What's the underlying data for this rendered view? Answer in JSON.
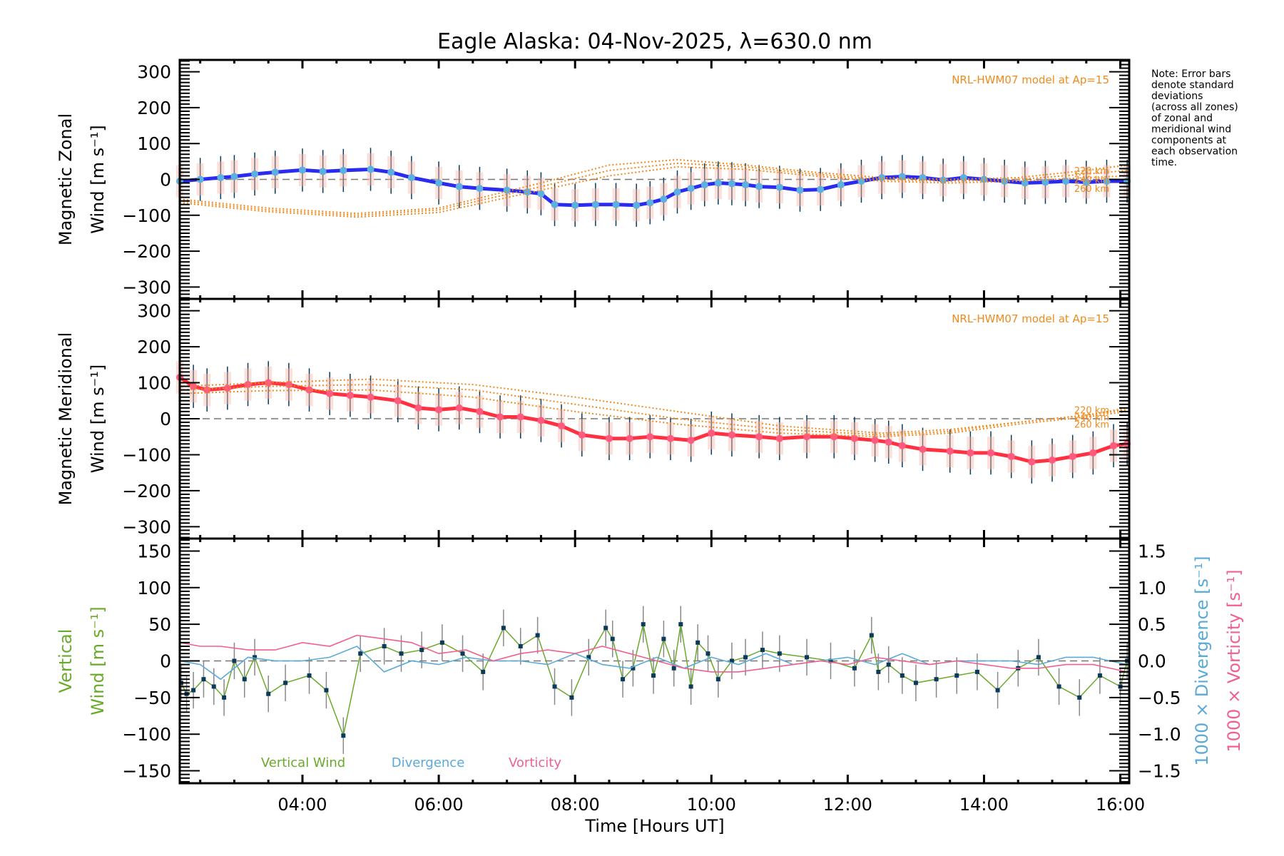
{
  "chart_data": [
    {
      "type": "line",
      "panel": "zonal",
      "title": "Eagle Alaska: 04-Nov-2025, λ=630.0 nm",
      "ylabel_line1": "Magnetic Zonal",
      "ylabel_line2": "Wind [m s⁻¹]",
      "ylim": [
        -333,
        333
      ],
      "yticks": [
        300,
        200,
        100,
        0,
        -100,
        -200,
        -300
      ],
      "ytick_labels": [
        "300",
        "200",
        "100",
        "0",
        "−100",
        "−200",
        "−300"
      ],
      "model_label": "NRL-HWM07 model at Ap=15",
      "model_altitudes": [
        "220 km",
        "240 km",
        "260 km"
      ],
      "series": [
        {
          "name": "Zonal wind (mean)",
          "color": "#2a2af0",
          "x": [
            2.2,
            2.5,
            2.8,
            3.0,
            3.3,
            3.6,
            4.0,
            4.3,
            4.6,
            5.0,
            5.3,
            5.6,
            6.0,
            6.3,
            6.6,
            7.0,
            7.3,
            7.5,
            7.7,
            8.0,
            8.3,
            8.6,
            8.9,
            9.1,
            9.3,
            9.5,
            9.7,
            9.9,
            10.1,
            10.3,
            10.5,
            10.7,
            11.0,
            11.3,
            11.6,
            11.9,
            12.2,
            12.5,
            12.8,
            13.1,
            13.4,
            13.7,
            14.0,
            14.3,
            14.6,
            14.9,
            15.2,
            15.5,
            15.8,
            16.1
          ],
          "values": [
            -5,
            0,
            5,
            8,
            15,
            20,
            26,
            22,
            25,
            28,
            20,
            5,
            -10,
            -20,
            -25,
            -30,
            -35,
            -40,
            -70,
            -72,
            -70,
            -70,
            -72,
            -65,
            -55,
            -35,
            -25,
            -15,
            -10,
            -12,
            -15,
            -20,
            -22,
            -30,
            -28,
            -15,
            -5,
            5,
            8,
            5,
            -2,
            5,
            0,
            -5,
            -10,
            -8,
            -5,
            -8,
            -5,
            -5
          ]
        },
        {
          "name": "HWM07 220 km",
          "color": "#f08a1c",
          "x": [
            2.2,
            3.5,
            4.8,
            6.0,
            7.5,
            8.5,
            9.5,
            10.5,
            11.5,
            12.5,
            13.5,
            14.5,
            15.5,
            16.1
          ],
          "values": [
            -55,
            -80,
            -95,
            -80,
            -10,
            40,
            55,
            40,
            20,
            5,
            0,
            5,
            25,
            40
          ]
        },
        {
          "name": "HWM07 240 km",
          "color": "#f08a1c",
          "x": [
            2.2,
            3.5,
            4.8,
            6.0,
            7.5,
            8.5,
            9.5,
            10.5,
            11.5,
            12.5,
            13.5,
            14.5,
            15.5,
            16.1
          ],
          "values": [
            -60,
            -85,
            -100,
            -85,
            -20,
            25,
            45,
            35,
            15,
            0,
            -5,
            0,
            15,
            25
          ]
        },
        {
          "name": "HWM07 260 km",
          "color": "#f08a1c",
          "x": [
            2.2,
            3.5,
            4.8,
            6.0,
            7.5,
            8.5,
            9.5,
            10.5,
            11.5,
            12.5,
            13.5,
            14.5,
            15.5,
            16.1
          ],
          "values": [
            -65,
            -90,
            -105,
            -92,
            -30,
            10,
            35,
            28,
            10,
            -5,
            -10,
            -5,
            5,
            10
          ]
        }
      ]
    },
    {
      "type": "line",
      "panel": "meridional",
      "ylabel_line1": "Magnetic Meridional",
      "ylabel_line2": "Wind [m s⁻¹]",
      "ylim": [
        -333,
        333
      ],
      "yticks": [
        300,
        200,
        100,
        0,
        -100,
        -200,
        -300
      ],
      "ytick_labels": [
        "300",
        "200",
        "100",
        "0",
        "−100",
        "−200",
        "−300"
      ],
      "model_label": "NRL-HWM07 model at Ap=15",
      "model_altitudes": [
        "220 km",
        "240 km",
        "260 km"
      ],
      "series": [
        {
          "name": "Meridional wind (mean)",
          "color": "#ff3040",
          "x": [
            2.2,
            2.4,
            2.6,
            2.9,
            3.2,
            3.5,
            3.8,
            4.1,
            4.4,
            4.7,
            5.0,
            5.4,
            5.7,
            6.0,
            6.3,
            6.6,
            6.9,
            7.2,
            7.5,
            7.8,
            8.1,
            8.5,
            8.8,
            9.1,
            9.4,
            9.7,
            10.0,
            10.3,
            10.7,
            11.0,
            11.4,
            11.8,
            12.1,
            12.4,
            12.6,
            12.8,
            13.1,
            13.5,
            13.8,
            14.1,
            14.4,
            14.7,
            15.0,
            15.3,
            15.6,
            15.9,
            16.1
          ],
          "values": [
            115,
            90,
            80,
            85,
            95,
            100,
            95,
            80,
            70,
            65,
            60,
            50,
            30,
            25,
            30,
            20,
            5,
            5,
            -5,
            -20,
            -45,
            -55,
            -55,
            -50,
            -55,
            -60,
            -40,
            -45,
            -50,
            -55,
            -50,
            -50,
            -55,
            -60,
            -65,
            -75,
            -85,
            -90,
            -95,
            -95,
            -105,
            -120,
            -115,
            -105,
            -95,
            -75,
            -70
          ]
        },
        {
          "name": "HWM07 220 km",
          "color": "#f08a1c",
          "x": [
            2.2,
            3.5,
            5.0,
            6.5,
            8.0,
            9.5,
            11.0,
            12.5,
            13.5,
            14.5,
            15.5,
            16.1
          ],
          "values": [
            90,
            100,
            110,
            95,
            60,
            20,
            -20,
            -40,
            -30,
            -10,
            10,
            30
          ]
        },
        {
          "name": "HWM07 240 km",
          "color": "#f08a1c",
          "x": [
            2.2,
            3.5,
            5.0,
            6.5,
            8.0,
            9.5,
            11.0,
            12.5,
            13.5,
            14.5,
            15.5,
            16.1
          ],
          "values": [
            80,
            90,
            95,
            80,
            40,
            0,
            -30,
            -45,
            -35,
            -10,
            10,
            25
          ]
        },
        {
          "name": "HWM07 260 km",
          "color": "#f08a1c",
          "x": [
            2.2,
            3.5,
            5.0,
            6.5,
            8.0,
            9.5,
            11.0,
            12.5,
            13.5,
            14.5,
            15.5,
            16.1
          ],
          "values": [
            70,
            78,
            80,
            60,
            20,
            -15,
            -40,
            -50,
            -40,
            -15,
            5,
            20
          ]
        }
      ]
    },
    {
      "type": "line",
      "panel": "vertical",
      "ylabel_line1": "Vertical",
      "ylabel_line2": "Wind [m s⁻¹]",
      "ylim": [
        -167,
        167
      ],
      "yticks": [
        150,
        100,
        50,
        0,
        -50,
        -100,
        -150
      ],
      "ytick_labels": [
        "150",
        "100",
        "50",
        "0",
        "−50",
        "−100",
        "−150"
      ],
      "y2label_div": "1000 × Divergence [s⁻¹]",
      "y2label_vort": "1000 × Vorticity [s⁻¹]",
      "y2lim": [
        -1.67,
        1.67
      ],
      "y2ticks": [
        1.5,
        1.0,
        0.5,
        0.0,
        -0.5,
        -1.0,
        -1.5
      ],
      "y2tick_labels": [
        "1.5",
        "1.0",
        "0.5",
        "0.0",
        "−0.5",
        "−1.0",
        "−1.5"
      ],
      "legend": [
        "Vertical Wind",
        "Divergence",
        "Vorticity"
      ],
      "legend_placement": "bottom-left",
      "series": [
        {
          "name": "Vertical Wind",
          "color": "#6aaa2a",
          "x": [
            2.22,
            2.3,
            2.4,
            2.55,
            2.7,
            2.85,
            3.0,
            3.15,
            3.3,
            3.5,
            3.75,
            4.1,
            4.35,
            4.6,
            4.85,
            5.2,
            5.45,
            5.75,
            6.05,
            6.35,
            6.65,
            6.95,
            7.2,
            7.45,
            7.7,
            7.95,
            8.2,
            8.45,
            8.55,
            8.7,
            8.85,
            9.0,
            9.15,
            9.3,
            9.45,
            9.55,
            9.7,
            9.8,
            9.95,
            10.1,
            10.3,
            10.5,
            10.75,
            11.0,
            11.4,
            11.75,
            12.1,
            12.35,
            12.45,
            12.6,
            12.8,
            13.0,
            13.3,
            13.6,
            13.9,
            14.2,
            14.5,
            14.8,
            15.1,
            15.4,
            15.7,
            16.0,
            16.1
          ],
          "values": [
            -30,
            -45,
            -40,
            -25,
            -35,
            -50,
            0,
            -25,
            5,
            -45,
            -30,
            -20,
            -40,
            -102,
            10,
            20,
            10,
            15,
            25,
            10,
            -15,
            45,
            20,
            35,
            -35,
            -50,
            5,
            45,
            30,
            -25,
            -10,
            50,
            -20,
            30,
            -10,
            50,
            -35,
            25,
            10,
            -25,
            0,
            5,
            15,
            10,
            5,
            0,
            -10,
            35,
            -15,
            -5,
            -20,
            -30,
            -25,
            -20,
            -15,
            -40,
            -10,
            5,
            -35,
            -50,
            -20,
            -35,
            0
          ]
        },
        {
          "name": "Divergence",
          "color": "#5aaad8",
          "x": [
            2.2,
            2.5,
            2.8,
            3.2,
            3.6,
            4.0,
            4.4,
            4.8,
            5.2,
            5.6,
            6.0,
            6.4,
            6.8,
            7.2,
            7.6,
            8.0,
            8.4,
            8.8,
            9.2,
            9.6,
            10.0,
            10.4,
            10.8,
            11.2,
            11.6,
            12.0,
            12.4,
            12.8,
            13.2,
            13.6,
            14.0,
            14.4,
            14.8,
            15.2,
            15.6,
            16.1
          ],
          "values": [
            0.0,
            -0.05,
            -0.25,
            0.05,
            0.0,
            0.0,
            0.05,
            0.2,
            -0.15,
            0.0,
            -0.05,
            0.05,
            0.0,
            0.0,
            -0.05,
            0.1,
            -0.05,
            -0.1,
            0.05,
            -0.1,
            0.05,
            -0.05,
            0.1,
            -0.05,
            0.0,
            0.05,
            -0.05,
            0.1,
            -0.05,
            0.0,
            0.0,
            0.0,
            -0.05,
            0.05,
            0.05,
            -0.05
          ]
        },
        {
          "name": "Vorticity",
          "color": "#f06090",
          "x": [
            2.2,
            2.5,
            2.8,
            3.2,
            3.6,
            4.0,
            4.4,
            4.8,
            5.2,
            5.6,
            6.0,
            6.4,
            6.8,
            7.2,
            7.6,
            8.0,
            8.4,
            8.8,
            9.2,
            9.6,
            10.0,
            10.4,
            10.8,
            11.2,
            11.6,
            12.0,
            12.4,
            12.8,
            13.2,
            13.6,
            14.0,
            14.4,
            14.8,
            15.2,
            15.6,
            16.1
          ],
          "values": [
            0.25,
            0.2,
            0.2,
            0.15,
            0.15,
            0.25,
            0.2,
            0.35,
            0.3,
            0.25,
            0.1,
            0.15,
            0.0,
            0.1,
            0.15,
            0.1,
            0.2,
            0.1,
            0.0,
            -0.1,
            -0.15,
            -0.15,
            -0.1,
            -0.05,
            0.0,
            -0.05,
            0.05,
            0.0,
            -0.05,
            0.0,
            -0.05,
            -0.1,
            -0.1,
            -0.05,
            -0.05,
            -0.15
          ]
        }
      ]
    }
  ],
  "xaxis": {
    "label": "Time [Hours UT]",
    "range_hours": [
      2.2,
      16.13
    ],
    "ticks": [
      4,
      6,
      8,
      10,
      12,
      14,
      16
    ],
    "tick_labels": [
      "04:00",
      "06:00",
      "08:00",
      "10:00",
      "12:00",
      "14:00",
      "16:00"
    ]
  },
  "note": [
    "Note: Error bars",
    "denote standard",
    "deviations",
    "(across all zones)",
    "of zonal and",
    "meridional wind",
    "components at",
    "each observation",
    "time."
  ]
}
